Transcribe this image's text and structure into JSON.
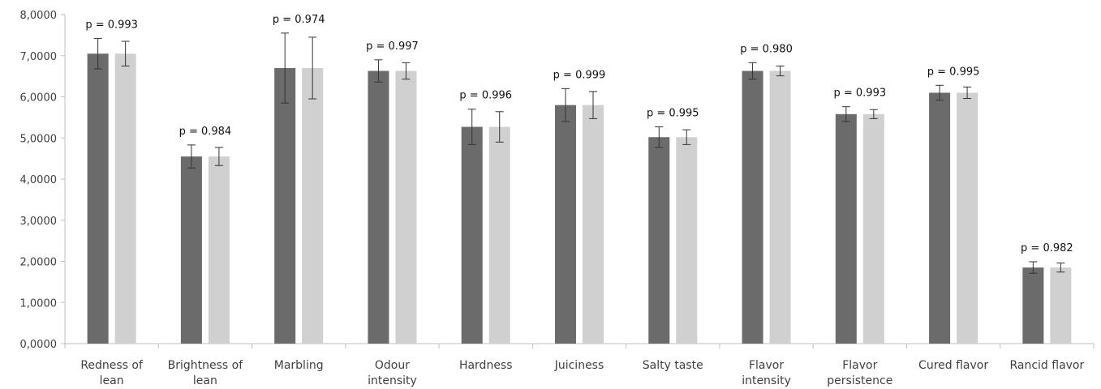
{
  "chart_data": {
    "type": "bar",
    "categories": [
      [
        "Redness of",
        "lean"
      ],
      [
        "Brightness of",
        "lean"
      ],
      [
        "Marbling"
      ],
      [
        "Odour",
        "intensity"
      ],
      [
        "Hardness"
      ],
      [
        "Juiciness"
      ],
      [
        "Salty taste"
      ],
      [
        "Flavor",
        "intensity"
      ],
      [
        "Flavor",
        "persistence"
      ],
      [
        "Cured flavor"
      ],
      [
        "Rancid flavor"
      ]
    ],
    "series": [
      {
        "color": "#6b6b6b",
        "values": [
          7.05,
          4.55,
          6.7,
          6.63,
          5.27,
          5.8,
          5.02,
          6.63,
          5.58,
          6.1,
          1.85
        ],
        "errors": [
          0.37,
          0.28,
          0.85,
          0.27,
          0.43,
          0.4,
          0.25,
          0.2,
          0.18,
          0.18,
          0.14
        ]
      },
      {
        "color": "#d0d0d0",
        "values": [
          7.05,
          4.55,
          6.7,
          6.63,
          5.27,
          5.8,
          5.02,
          6.63,
          5.58,
          6.1,
          1.85
        ],
        "errors": [
          0.3,
          0.22,
          0.75,
          0.2,
          0.37,
          0.33,
          0.18,
          0.12,
          0.11,
          0.14,
          0.11
        ]
      }
    ],
    "annotations": [
      "p = 0.993",
      "p = 0.984",
      "p = 0.974",
      "p = 0.997",
      "p = 0.996",
      "p = 0.999",
      "p = 0.995",
      "p = 0.980",
      "p = 0.993",
      "p = 0.995",
      "p = 0.982"
    ],
    "y_ticks": [
      "0,0000",
      "1,0000",
      "2,0000",
      "3,0000",
      "4,0000",
      "5,0000",
      "6,0000",
      "7,0000",
      "8,0000"
    ],
    "ylim": [
      0,
      8
    ],
    "grid": false,
    "legend": "none"
  }
}
